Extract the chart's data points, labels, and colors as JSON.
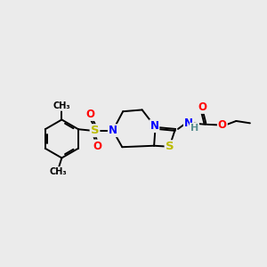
{
  "bg": "#ebebeb",
  "bond_color": "#000000",
  "bw": 1.4,
  "C_color": "#000000",
  "N_color": "#0000ff",
  "S_color": "#bbbb00",
  "O_color": "#ff0000",
  "H_color": "#5a9090",
  "fs": 8.5,
  "fs_sm": 7.0,
  "xlim": [
    0,
    10
  ],
  "ylim": [
    0,
    10
  ]
}
